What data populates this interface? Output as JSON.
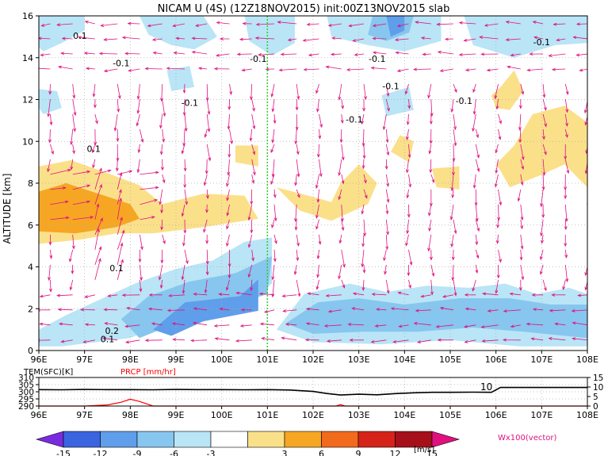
{
  "title": "NICAM U (4S) (12Z18NOV2015) init:00Z13NOV2015 slab",
  "colors": {
    "pos1": "#fbe08a",
    "pos2": "#f6a623",
    "pos3": "#f26a1b",
    "pos4": "#d6231a",
    "pos5": "#a5101a",
    "neg1": "#b9e5f6",
    "neg2": "#87c6ef",
    "neg3": "#5f9eea",
    "neg4": "#2f6fdc",
    "neg5": "#7a2be0",
    "vector": "#e0107f",
    "ref_line": "#2ecc2e",
    "precip": "#ff0000",
    "grid": "#b0b0b0"
  },
  "chart_data": [
    {
      "type": "heatmap",
      "name": "zonal wind cross section",
      "ylabel": "ALTITUDE [km]",
      "xlim": [
        96,
        108
      ],
      "ylim": [
        0,
        16
      ],
      "x_ticks": [
        "96E",
        "97E",
        "98E",
        "99E",
        "100E",
        "101E",
        "102E",
        "103E",
        "104E",
        "105E",
        "106E",
        "107E",
        "108E"
      ],
      "y_ticks": [
        "0",
        "2",
        "4",
        "6",
        "8",
        "10",
        "12",
        "14",
        "16"
      ],
      "grid": true,
      "reference_line_x": 101,
      "shaded_regions": [
        {
          "sign": "pos",
          "level": 1,
          "points": [
            [
              96,
              8.8
            ],
            [
              96.7,
              9.1
            ],
            [
              97.6,
              8.4
            ],
            [
              98.2,
              7.9
            ],
            [
              98.7,
              7.0
            ],
            [
              99.6,
              7.5
            ],
            [
              100.5,
              7.4
            ],
            [
              100.8,
              6.3
            ],
            [
              99.6,
              5.9
            ],
            [
              98.5,
              5.6
            ],
            [
              97.7,
              5.6
            ],
            [
              96.9,
              5.3
            ],
            [
              96,
              5.1
            ]
          ]
        },
        {
          "sign": "pos",
          "level": 2,
          "points": [
            [
              96,
              7.6
            ],
            [
              96.6,
              8.0
            ],
            [
              97.3,
              7.5
            ],
            [
              98.0,
              7.0
            ],
            [
              98.2,
              6.3
            ],
            [
              97.7,
              5.9
            ],
            [
              96.8,
              5.6
            ],
            [
              96,
              5.7
            ]
          ]
        },
        {
          "sign": "pos",
          "level": 1,
          "points": [
            [
              101.2,
              7.8
            ],
            [
              101.9,
              7.4
            ],
            [
              102.4,
              7.1
            ],
            [
              102.6,
              8.0
            ],
            [
              103.0,
              8.9
            ],
            [
              103.4,
              8.0
            ],
            [
              103.2,
              7.0
            ],
            [
              102.4,
              6.2
            ],
            [
              101.7,
              6.7
            ]
          ]
        },
        {
          "sign": "pos",
          "level": 1,
          "points": [
            [
              103.7,
              9.5
            ],
            [
              104.1,
              9.0
            ],
            [
              104.2,
              10.0
            ],
            [
              103.9,
              10.3
            ]
          ]
        },
        {
          "sign": "pos",
          "level": 1,
          "points": [
            [
              104.6,
              8.7
            ],
            [
              105.2,
              8.8
            ],
            [
              105.2,
              7.7
            ],
            [
              104.7,
              7.8
            ]
          ]
        },
        {
          "sign": "pos",
          "level": 1,
          "points": [
            [
              106.0,
              8.9
            ],
            [
              106.4,
              9.8
            ],
            [
              106.8,
              11.3
            ],
            [
              107.5,
              11.7
            ],
            [
              108,
              10.9
            ],
            [
              108,
              7.8
            ],
            [
              107.5,
              8.9
            ],
            [
              107.0,
              8.4
            ],
            [
              106.3,
              7.8
            ],
            [
              106.1,
              8.6
            ]
          ]
        },
        {
          "sign": "pos",
          "level": 1,
          "points": [
            [
              105.9,
              12.2
            ],
            [
              106.1,
              12.6
            ],
            [
              106.4,
              13.4
            ],
            [
              106.6,
              12.4
            ],
            [
              106.3,
              11.5
            ],
            [
              106.0,
              11.6
            ]
          ]
        },
        {
          "sign": "pos",
          "level": 1,
          "points": [
            [
              100.3,
              9.8
            ],
            [
              100.8,
              9.8
            ],
            [
              100.8,
              8.8
            ],
            [
              100.3,
              9.0
            ]
          ]
        },
        {
          "sign": "neg",
          "level": 1,
          "points": [
            [
              96,
              1.0
            ],
            [
              96.6,
              1.7
            ],
            [
              97.2,
              2.3
            ],
            [
              98.1,
              3.2
            ],
            [
              99.0,
              3.9
            ],
            [
              99.8,
              4.3
            ],
            [
              100.5,
              5.2
            ],
            [
              101.1,
              5.4
            ],
            [
              101.1,
              3.2
            ],
            [
              100.4,
              2.2
            ],
            [
              99.2,
              1.7
            ],
            [
              98.0,
              0.6
            ],
            [
              96.5,
              0.2
            ],
            [
              96,
              0.2
            ]
          ]
        },
        {
          "sign": "neg",
          "level": 2,
          "points": [
            [
              97.8,
              1.5
            ],
            [
              98.4,
              2.6
            ],
            [
              99.3,
              3.3
            ],
            [
              100.3,
              3.7
            ],
            [
              101.1,
              4.5
            ],
            [
              101.0,
              2.7
            ],
            [
              100.0,
              2.0
            ],
            [
              99.0,
              1.3
            ],
            [
              98.2,
              0.6
            ]
          ]
        },
        {
          "sign": "neg",
          "level": 3,
          "points": [
            [
              98.5,
              1.0
            ],
            [
              99.2,
              2.3
            ],
            [
              100.4,
              2.6
            ],
            [
              100.8,
              3.4
            ],
            [
              100.8,
              1.9
            ],
            [
              99.6,
              1.4
            ],
            [
              98.9,
              0.7
            ]
          ]
        },
        {
          "sign": "neg",
          "level": 1,
          "points": [
            [
              101.2,
              1.0
            ],
            [
              101.8,
              2.7
            ],
            [
              102.8,
              3.2
            ],
            [
              103.6,
              2.8
            ],
            [
              104.5,
              3.1
            ],
            [
              105.4,
              3.0
            ],
            [
              106.2,
              3.2
            ],
            [
              106.9,
              2.7
            ],
            [
              107.6,
              3.0
            ],
            [
              108,
              2.7
            ],
            [
              108,
              0.2
            ],
            [
              106.5,
              0.2
            ],
            [
              105.0,
              0.5
            ],
            [
              103.5,
              0.3
            ],
            [
              102.0,
              0.4
            ]
          ]
        },
        {
          "sign": "neg",
          "level": 2,
          "points": [
            [
              101.4,
              1.3
            ],
            [
              102.1,
              2.3
            ],
            [
              103.0,
              2.5
            ],
            [
              104.0,
              2.2
            ],
            [
              105.2,
              2.5
            ],
            [
              106.3,
              2.5
            ],
            [
              107.2,
              2.2
            ],
            [
              108,
              2.2
            ],
            [
              108,
              0.6
            ],
            [
              106.6,
              0.9
            ],
            [
              105.5,
              1.1
            ],
            [
              104.3,
              0.9
            ],
            [
              103.1,
              0.9
            ],
            [
              102.0,
              0.8
            ]
          ]
        },
        {
          "sign": "neg",
          "level": 1,
          "points": [
            [
              96,
              16
            ],
            [
              97.0,
              16
            ],
            [
              97.0,
              15.3
            ],
            [
              96.5,
              14.7
            ],
            [
              96.1,
              14.3
            ],
            [
              96,
              14.5
            ]
          ]
        },
        {
          "sign": "neg",
          "level": 1,
          "points": [
            [
              98.2,
              16
            ],
            [
              99.6,
              16
            ],
            [
              99.9,
              15.0
            ],
            [
              99.4,
              14.4
            ],
            [
              98.9,
              14.6
            ],
            [
              98.4,
              15.1
            ]
          ]
        },
        {
          "sign": "neg",
          "level": 1,
          "points": [
            [
              100.5,
              16
            ],
            [
              101.6,
              16
            ],
            [
              101.6,
              14.7
            ],
            [
              101.1,
              14.1
            ],
            [
              100.6,
              14.8
            ]
          ]
        },
        {
          "sign": "neg",
          "level": 1,
          "points": [
            [
              102.3,
              16
            ],
            [
              104.8,
              16
            ],
            [
              104.8,
              14.8
            ],
            [
              104.0,
              14.3
            ],
            [
              103.2,
              14.6
            ],
            [
              102.4,
              15.0
            ]
          ]
        },
        {
          "sign": "neg",
          "level": 2,
          "points": [
            [
              103.3,
              16
            ],
            [
              104.2,
              16
            ],
            [
              104.1,
              15.2
            ],
            [
              103.6,
              14.8
            ],
            [
              103.2,
              15.1
            ]
          ]
        },
        {
          "sign": "neg",
          "level": 3,
          "points": [
            [
              103.6,
              16
            ],
            [
              104.0,
              16
            ],
            [
              104.0,
              15.3
            ],
            [
              103.7,
              15.0
            ]
          ]
        },
        {
          "sign": "neg",
          "level": 1,
          "points": [
            [
              105.3,
              16
            ],
            [
              108,
              16
            ],
            [
              108,
              14.7
            ],
            [
              107.3,
              14.6
            ],
            [
              106.4,
              14.0
            ],
            [
              105.5,
              14.6
            ]
          ]
        },
        {
          "sign": "neg",
          "level": 1,
          "points": [
            [
              96,
              12.5
            ],
            [
              96.4,
              12.4
            ],
            [
              96.5,
              11.6
            ],
            [
              96.1,
              11.3
            ],
            [
              96,
              11.6
            ]
          ]
        },
        {
          "sign": "neg",
          "level": 1,
          "points": [
            [
              98.8,
              13.4
            ],
            [
              99.3,
              13.6
            ],
            [
              99.4,
              12.6
            ],
            [
              98.9,
              12.4
            ]
          ]
        },
        {
          "sign": "neg",
          "level": 1,
          "points": [
            [
              103.5,
              12.2
            ],
            [
              104.1,
              12.6
            ],
            [
              104.2,
              11.5
            ],
            [
              103.6,
              11.2
            ]
          ]
        }
      ],
      "contour_labels": [
        {
          "text": "0.1",
          "x": 96.9,
          "y": 14.9
        },
        {
          "text": "-0.1",
          "x": 97.8,
          "y": 13.6
        },
        {
          "text": "0.1",
          "x": 97.2,
          "y": 9.5
        },
        {
          "text": "-0.1",
          "x": 99.3,
          "y": 11.7
        },
        {
          "text": "-0.1",
          "x": 100.8,
          "y": 13.8
        },
        {
          "text": "-0.1",
          "x": 103.4,
          "y": 13.8
        },
        {
          "text": "-0.1",
          "x": 103.7,
          "y": 12.5
        },
        {
          "text": "-0.1",
          "x": 102.9,
          "y": 10.9
        },
        {
          "text": "-0.1",
          "x": 105.3,
          "y": 11.8
        },
        {
          "text": "-0.1",
          "x": 107.0,
          "y": 14.6
        },
        {
          "text": "0.1",
          "x": 97.7,
          "y": 3.8
        },
        {
          "text": "0.2",
          "x": 97.6,
          "y": 0.8
        },
        {
          "text": "0.1",
          "x": 97.5,
          "y": 0.4
        }
      ]
    },
    {
      "type": "line",
      "name": "surface panel",
      "x_ticks": [
        "96E",
        "97E",
        "98E",
        "99E",
        "100E",
        "101E",
        "102E",
        "103E",
        "104E",
        "105E",
        "106E",
        "107E",
        "108E"
      ],
      "left_axis_title": "TEM(SFC)[K]",
      "right_axis_title": "PRCP [mm/hr]",
      "left_ticks": [
        "290",
        "295",
        "300",
        "305",
        "310"
      ],
      "right_ticks": [
        "0",
        "5",
        "10",
        "15"
      ],
      "left_ylim": [
        290,
        310
      ],
      "right_ylim": [
        0,
        15
      ],
      "series": [
        {
          "name": "TEM(SFC)[K]",
          "x": [
            96,
            96.5,
            97,
            97.5,
            98,
            98.5,
            99,
            99.5,
            100,
            100.5,
            101,
            101.5,
            102,
            102.3,
            102.6,
            103,
            103.4,
            103.8,
            104.2,
            104.6,
            105,
            105.5,
            105.9,
            106.1,
            106.5,
            107,
            107.5,
            108
          ],
          "y": [
            301.5,
            301.4,
            301.6,
            301.5,
            301.5,
            301.4,
            301.6,
            301.5,
            301.5,
            301.4,
            301.5,
            301.2,
            300.2,
            298.8,
            297.7,
            298.3,
            297.9,
            298.7,
            299.3,
            299.6,
            299.6,
            299.7,
            299.6,
            303.0,
            303.0,
            303.0,
            303.0,
            303.0
          ]
        },
        {
          "name": "PRCP [mm/hr]",
          "x": [
            96,
            97,
            97.5,
            97.8,
            98.0,
            98.2,
            98.5,
            99,
            100,
            102,
            102.5,
            102.6,
            102.7,
            103,
            104,
            105,
            106,
            107,
            108
          ],
          "y": [
            0,
            0,
            0.6,
            2.0,
            3.6,
            2.4,
            0,
            0,
            0,
            0,
            0,
            0.7,
            0,
            0,
            0,
            0,
            0,
            0,
            0
          ]
        }
      ],
      "annotation": "10"
    }
  ],
  "colorbar": {
    "labels": [
      "-15",
      "-12",
      "-9",
      "-6",
      "-3",
      "3",
      "6",
      "9",
      "12",
      "15"
    ],
    "unit": "[m/s]"
  },
  "vector_label": "Wx100(vector)"
}
